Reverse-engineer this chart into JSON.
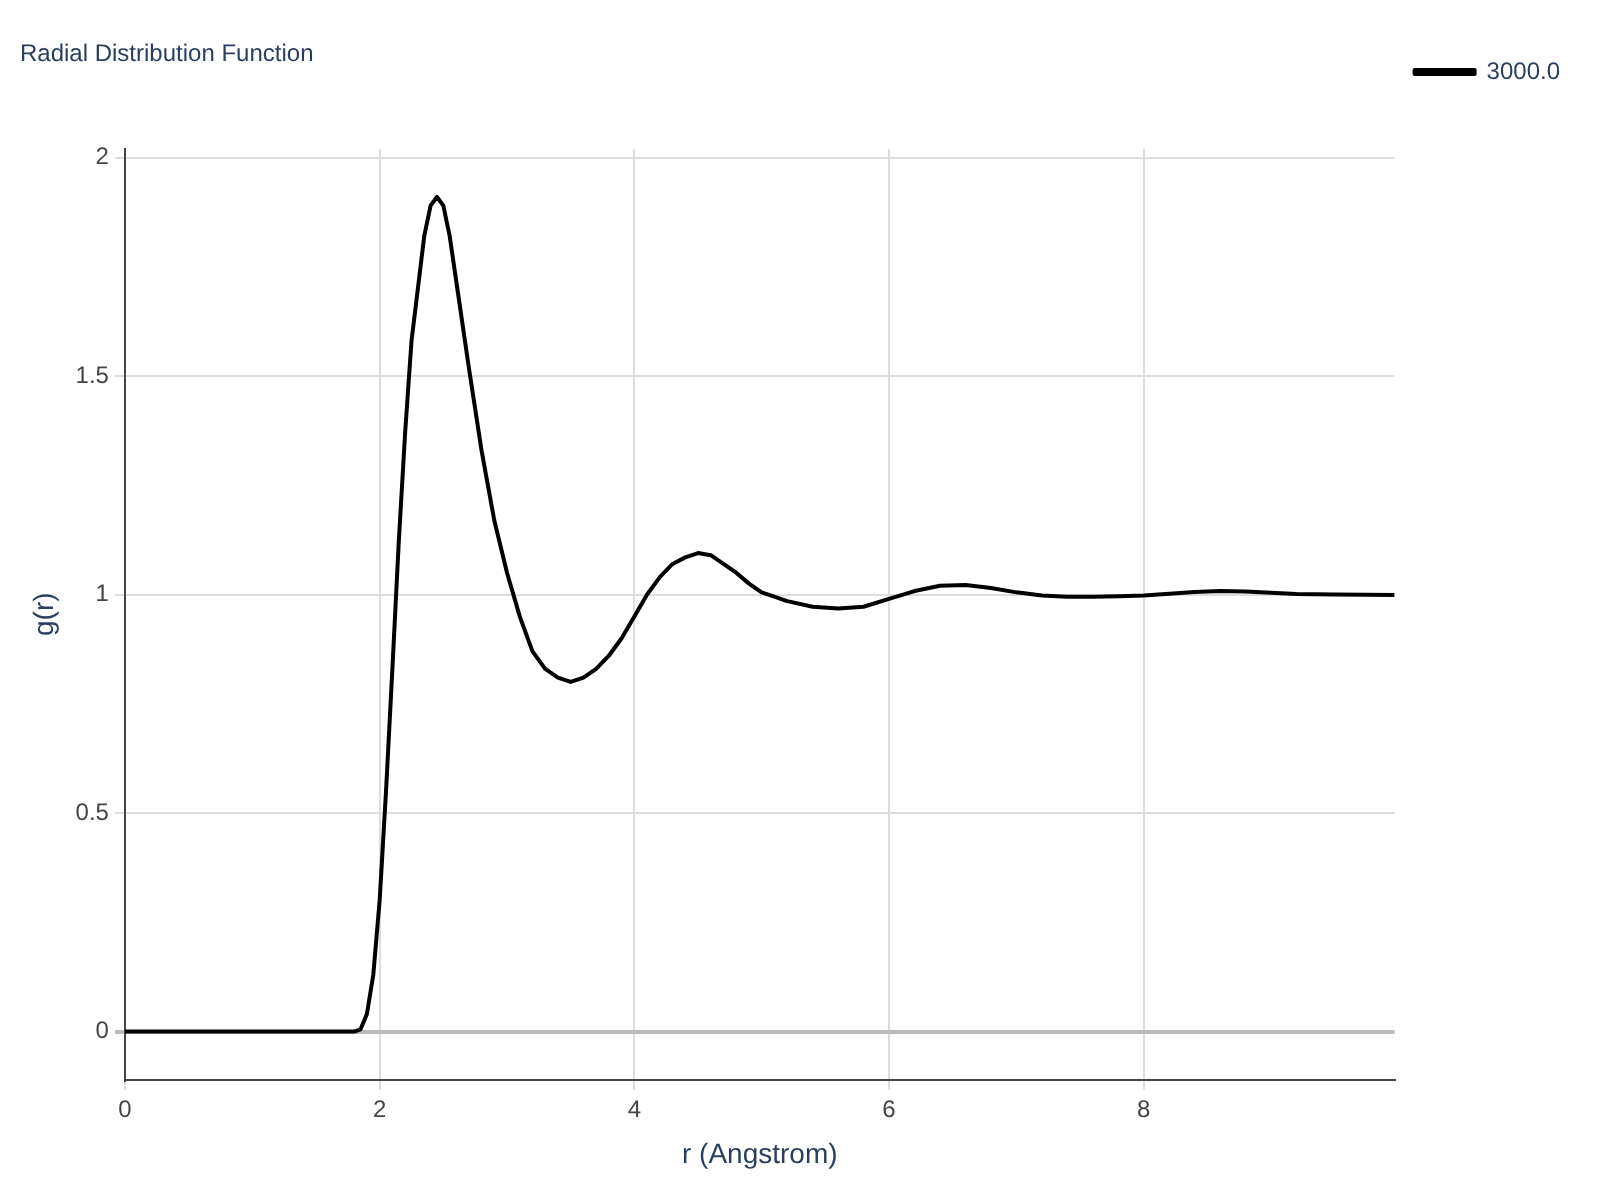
{
  "chart_data": {
    "type": "line",
    "title": "Radial Distribution Function",
    "xlabel": "r (Angstrom)",
    "ylabel": "g(r)",
    "xlim": [
      0,
      9.97
    ],
    "xticks": [
      0,
      2,
      4,
      6,
      8
    ],
    "ylim": [
      -0.11,
      2.02
    ],
    "yticks": [
      0,
      0.5,
      1,
      1.5,
      2
    ],
    "grid": true,
    "legend": "top right",
    "marker": "none",
    "line_style": "solid",
    "series": [
      {
        "name": "3000.0",
        "color": "#000000",
        "x": [
          0,
          1.8,
          1.85,
          1.9,
          1.95,
          2.0,
          2.05,
          2.1,
          2.15,
          2.2,
          2.25,
          2.3,
          2.35,
          2.4,
          2.45,
          2.5,
          2.55,
          2.6,
          2.7,
          2.8,
          2.9,
          3.0,
          3.1,
          3.2,
          3.3,
          3.4,
          3.5,
          3.6,
          3.7,
          3.8,
          3.9,
          4.0,
          4.1,
          4.2,
          4.3,
          4.4,
          4.5,
          4.6,
          4.7,
          4.8,
          4.9,
          5.0,
          5.2,
          5.4,
          5.6,
          5.8,
          6.0,
          6.2,
          6.4,
          6.6,
          6.8,
          7.0,
          7.2,
          7.4,
          7.6,
          7.8,
          8.0,
          8.2,
          8.4,
          8.6,
          8.8,
          9.0,
          9.2,
          9.5,
          9.97
        ],
        "values": [
          0,
          0,
          0.005,
          0.04,
          0.13,
          0.3,
          0.55,
          0.83,
          1.12,
          1.37,
          1.58,
          1.7,
          1.82,
          1.89,
          1.91,
          1.89,
          1.82,
          1.72,
          1.52,
          1.33,
          1.17,
          1.05,
          0.95,
          0.87,
          0.83,
          0.81,
          0.8,
          0.81,
          0.83,
          0.86,
          0.9,
          0.95,
          1.0,
          1.04,
          1.07,
          1.085,
          1.095,
          1.09,
          1.07,
          1.05,
          1.025,
          1.005,
          0.985,
          0.972,
          0.968,
          0.972,
          0.99,
          1.008,
          1.02,
          1.022,
          1.015,
          1.005,
          0.998,
          0.995,
          0.995,
          0.996,
          0.998,
          1.002,
          1.006,
          1.008,
          1.007,
          1.004,
          1.001,
          1.0,
          0.999
        ]
      }
    ]
  }
}
